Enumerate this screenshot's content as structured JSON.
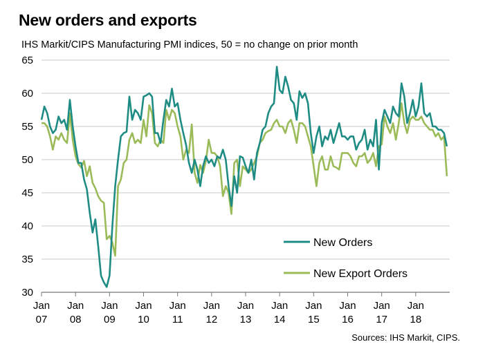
{
  "title": "New orders and exports",
  "subtitle": "IHS Markit/CIPS Manufacturing PMI indices, 50 = no change on prior month",
  "source": "Sources: IHS Markit, CIPS.",
  "chart_data": {
    "type": "line",
    "title": "New orders and exports",
    "ylim": [
      30,
      65
    ],
    "yticks": [
      30,
      35,
      40,
      45,
      50,
      55,
      60,
      65
    ],
    "x_tick_labels": [
      {
        "m": "Jan",
        "y": "07",
        "x": 2007
      },
      {
        "m": "Jan",
        "y": "08",
        "x": 2008
      },
      {
        "m": "Jan",
        "y": "09",
        "x": 2009
      },
      {
        "m": "Jan",
        "y": "10",
        "x": 2010
      },
      {
        "m": "Jan",
        "y": "11",
        "x": 2011
      },
      {
        "m": "Jan",
        "y": "12",
        "x": 2012
      },
      {
        "m": "Jan",
        "y": "13",
        "x": 2013
      },
      {
        "m": "Jan",
        "y": "14",
        "x": 2014
      },
      {
        "m": "Jan",
        "y": "15",
        "x": 2015
      },
      {
        "m": "Jan",
        "y": "16",
        "x": 2016
      },
      {
        "m": "Jan",
        "y": "17",
        "x": 2017
      },
      {
        "m": "Jan",
        "y": "18",
        "x": 2018
      }
    ],
    "grid": "horizontal",
    "legend_position": "lower-right",
    "series": [
      {
        "name": "New Orders",
        "color": "#1e8c84",
        "values": [
          56,
          58,
          57,
          55,
          54,
          54.5,
          56.5,
          55.5,
          56,
          54.5,
          59,
          55,
          52,
          49.5,
          49.5,
          47,
          45.5,
          42,
          39,
          41,
          37,
          32.5,
          31.5,
          30.8,
          32.5,
          40,
          46,
          50,
          53.5,
          54,
          54.2,
          59.5,
          56,
          57.5,
          57,
          56,
          59.5,
          59.7,
          60,
          59.5,
          54,
          54,
          52.5,
          56,
          59,
          58,
          60.7,
          58,
          58.5,
          56,
          54,
          52.2,
          49.5,
          48,
          50,
          48.5,
          46,
          49,
          50.5,
          49.5,
          50,
          49,
          50.5,
          50.2,
          51.5,
          50,
          46,
          43,
          47.5,
          45,
          50.5,
          50.3,
          49,
          48,
          50,
          47,
          51,
          52.5,
          54.5,
          55,
          57,
          58,
          58.5,
          64,
          60.5,
          60,
          62.5,
          61,
          59,
          58.5,
          56,
          60.3,
          59.3,
          60,
          58.5,
          54,
          51,
          53.5,
          55,
          52,
          53.5,
          53,
          54.5,
          52.5,
          54,
          55.5,
          53.5,
          53.5,
          53,
          53.5,
          53.5,
          51.5,
          52.5,
          53,
          54.5,
          51.5,
          53,
          52,
          56,
          48.5,
          55.5,
          57.5,
          56.5,
          55.5,
          58,
          57,
          56.5,
          61.5,
          59.5,
          55.5,
          57,
          59,
          56.5,
          58,
          61.5,
          57,
          56.5,
          57,
          55,
          55,
          54.5,
          54.5,
          54,
          52
        ]
      },
      {
        "name": "New Export Orders",
        "color": "#9bbb59",
        "values": [
          55.5,
          55.5,
          55,
          53.5,
          51.5,
          53.5,
          53,
          54,
          53,
          52.5,
          57,
          53,
          50.5,
          49.3,
          48.8,
          49.8,
          47.5,
          49,
          46.5,
          45.7,
          44.5,
          43.8,
          43.5,
          38,
          38.5,
          37.5,
          35.5,
          46,
          47,
          49.5,
          50,
          53,
          54,
          52.5,
          53,
          52.5,
          56,
          53.5,
          58.2,
          57,
          52.5,
          52,
          53,
          52.5,
          57.5,
          56,
          57.5,
          57,
          55,
          53.5,
          50,
          51.5,
          51,
          55.3,
          48,
          46.5,
          49.2,
          48,
          49.8,
          53,
          51,
          51,
          50.5,
          49,
          44.5,
          46,
          45,
          41.8,
          49.5,
          50,
          46,
          49,
          48.5,
          48,
          48.5,
          49.5,
          50.5,
          52.5,
          53,
          54,
          54.3,
          54.5,
          55.5,
          56,
          55,
          55,
          54,
          55.5,
          56,
          54.5,
          52.5,
          55.5,
          55.5,
          55,
          53.5,
          52,
          49,
          46,
          49.5,
          50.5,
          48.5,
          48.5,
          50.5,
          49,
          48.8,
          48.5,
          51,
          51,
          51,
          50.5,
          49.5,
          49,
          50.5,
          50.5,
          51,
          49.5,
          50,
          51,
          49,
          52,
          52.3,
          56.5,
          55,
          54,
          55.5,
          53,
          55.5,
          58.5,
          55.5,
          54,
          56,
          56.5,
          56,
          56,
          56.5,
          55.5,
          55,
          54.5,
          54.5,
          53.5,
          54,
          53,
          53.5,
          47.5
        ]
      }
    ]
  }
}
